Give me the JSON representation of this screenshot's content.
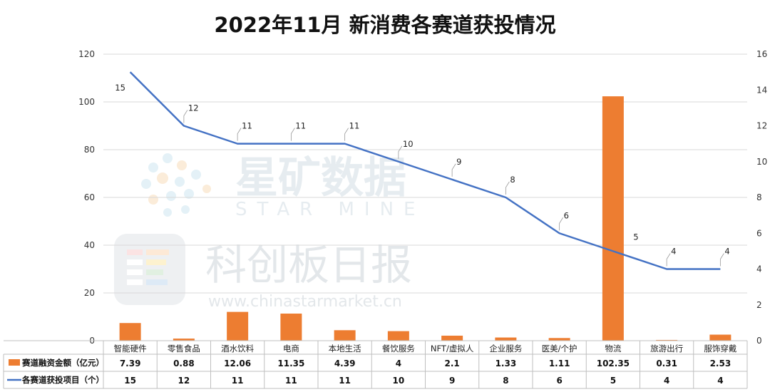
{
  "title": "2022年11月 新消费各赛道获投情况",
  "watermark": {
    "brand_cn": "星矿数据",
    "brand_en": "STAR MINE",
    "publisher": "科创板日报",
    "url": "www.chinastarmarket.cn"
  },
  "colors": {
    "bar": "#ED7D31",
    "line": "#4472C4",
    "grid": "#d9d9d9"
  },
  "chart_data": {
    "type": "bar",
    "title": "2022年11月 新消费各赛道获投情况",
    "categories": [
      "智能硬件",
      "零售食品",
      "酒水饮料",
      "电商",
      "本地生活",
      "餐饮服务",
      "NFT/虚拟人",
      "企业服务",
      "医美/个护",
      "物流",
      "旅游出行",
      "服饰穿戴"
    ],
    "series": [
      {
        "name": "赛道融资金额（亿元）",
        "type": "bar",
        "axis": "left",
        "values": [
          7.39,
          0.88,
          12.06,
          11.35,
          4.39,
          4,
          2.1,
          1.33,
          1.11,
          102.35,
          0.31,
          2.53
        ]
      },
      {
        "name": "各赛道获投项目（个）",
        "type": "line",
        "axis": "right",
        "values": [
          15,
          12,
          11,
          11,
          11,
          10,
          9,
          8,
          6,
          5,
          4,
          4
        ]
      }
    ],
    "ylim_left": [
      0,
      120
    ],
    "yticks_left": [
      0,
      20,
      40,
      60,
      80,
      100,
      120
    ],
    "ylim_right": [
      0,
      16
    ],
    "yticks_right": [
      0,
      2,
      4,
      6,
      8,
      10,
      12,
      14,
      16
    ],
    "grid": true,
    "legend": "data-table-bottom"
  }
}
